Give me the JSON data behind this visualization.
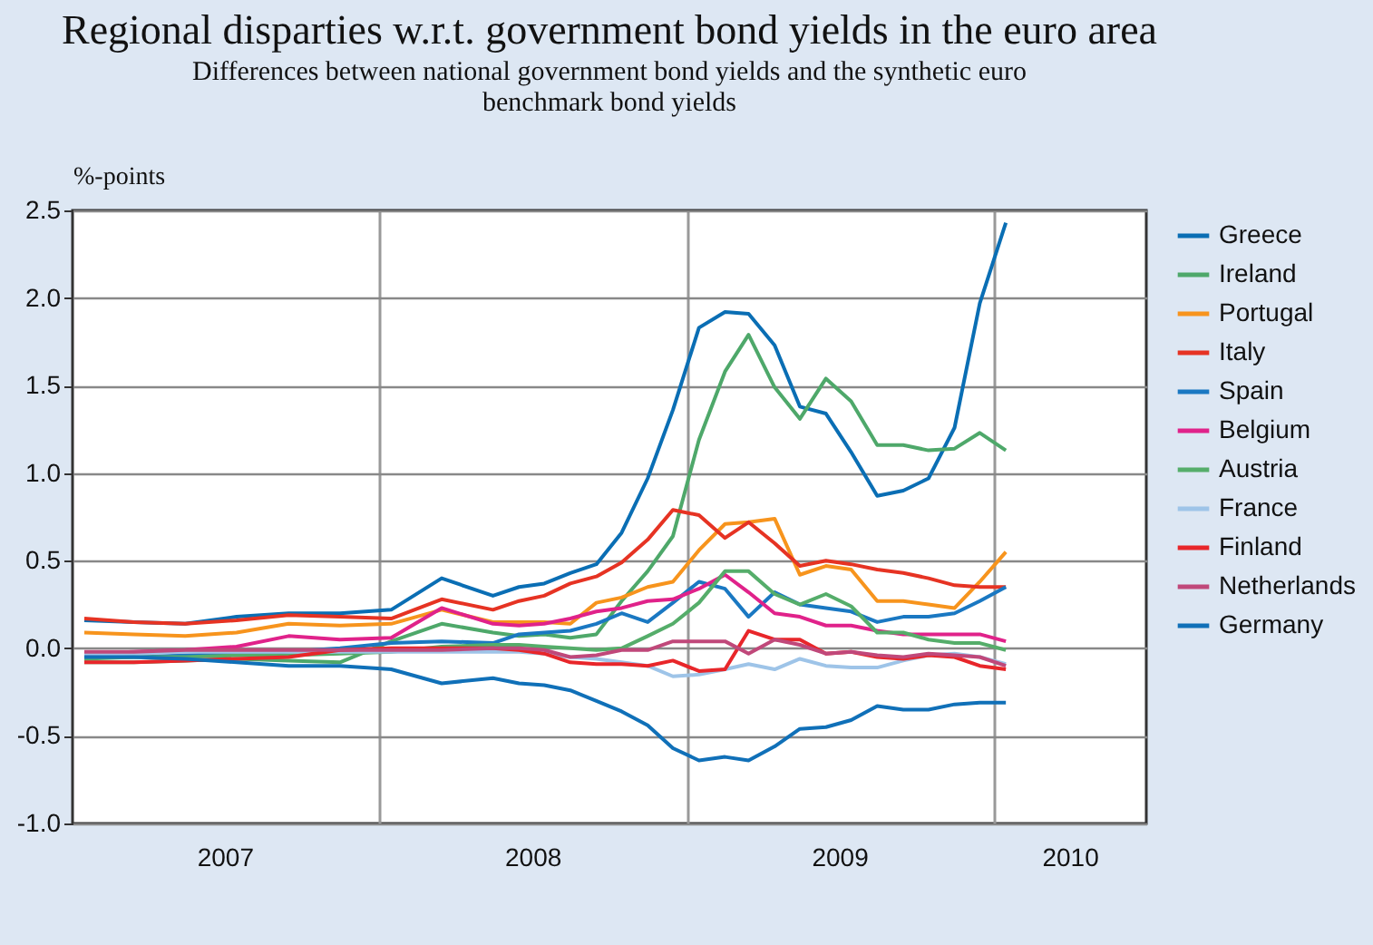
{
  "chart_data": {
    "type": "line",
    "title": "Regional disparties w.r.t. government bond yields in the euro area",
    "subtitle": "Differences between national government bond yields and the synthetic euro benchmark bond yields",
    "ylabel": "%-points",
    "x": [
      "2007-01-15",
      "2007-03-15",
      "2007-05-15",
      "2007-07-15",
      "2007-09-15",
      "2007-11-15",
      "2008-01-15",
      "2008-03-15",
      "2008-05-15",
      "2008-06-15",
      "2008-07-15",
      "2008-08-15",
      "2008-09-15",
      "2008-10-15",
      "2008-11-15",
      "2008-12-15",
      "2009-01-15",
      "2009-02-15",
      "2009-03-15",
      "2009-04-15",
      "2009-05-15",
      "2009-06-15",
      "2009-07-15",
      "2009-08-15",
      "2009-09-15",
      "2009-10-15",
      "2009-11-15",
      "2009-12-15",
      "2010-01-15"
    ],
    "series": [
      {
        "name": "Greece",
        "color": "#0a6eb4",
        "values": [
          0.16,
          0.15,
          0.14,
          0.18,
          0.2,
          0.2,
          0.22,
          0.4,
          0.3,
          0.35,
          0.37,
          0.43,
          0.48,
          0.66,
          0.97,
          1.36,
          1.83,
          1.92,
          1.91,
          1.73,
          1.38,
          1.34,
          1.12,
          0.87,
          0.9,
          0.97,
          1.26,
          1.97,
          2.43
        ]
      },
      {
        "name": "Ireland",
        "color": "#4ea86a",
        "values": [
          -0.08,
          -0.08,
          -0.07,
          -0.06,
          -0.07,
          -0.08,
          0.04,
          0.14,
          0.09,
          0.07,
          0.08,
          0.06,
          0.08,
          0.27,
          0.44,
          0.64,
          1.19,
          1.58,
          1.79,
          1.49,
          1.31,
          1.54,
          1.41,
          1.16,
          1.16,
          1.13,
          1.14,
          1.23,
          1.13
        ]
      },
      {
        "name": "Portugal",
        "color": "#f7941d",
        "values": [
          0.09,
          0.08,
          0.07,
          0.09,
          0.14,
          0.13,
          0.14,
          0.22,
          0.15,
          0.15,
          0.15,
          0.14,
          0.26,
          0.29,
          0.35,
          0.38,
          0.56,
          0.71,
          0.72,
          0.74,
          0.42,
          0.47,
          0.45,
          0.27,
          0.27,
          0.25,
          0.23,
          0.38,
          0.55
        ]
      },
      {
        "name": "Italy",
        "color": "#e63323",
        "values": [
          0.17,
          0.15,
          0.14,
          0.16,
          0.19,
          0.18,
          0.17,
          0.28,
          0.22,
          0.27,
          0.3,
          0.37,
          0.41,
          0.49,
          0.62,
          0.79,
          0.76,
          0.63,
          0.72,
          0.6,
          0.47,
          0.5,
          0.48,
          0.45,
          0.43,
          0.4,
          0.36,
          0.35,
          0.35
        ]
      },
      {
        "name": "Spain",
        "color": "#1a78c2",
        "values": [
          -0.05,
          -0.05,
          -0.04,
          -0.03,
          -0.02,
          0.0,
          0.03,
          0.04,
          0.03,
          0.08,
          0.09,
          0.1,
          0.14,
          0.2,
          0.15,
          0.26,
          0.38,
          0.34,
          0.18,
          0.32,
          0.25,
          0.23,
          0.21,
          0.15,
          0.18,
          0.18,
          0.2,
          0.27,
          0.35
        ]
      },
      {
        "name": "Belgium",
        "color": "#e0228a",
        "values": [
          -0.03,
          -0.02,
          -0.01,
          0.01,
          0.07,
          0.05,
          0.06,
          0.23,
          0.14,
          0.13,
          0.14,
          0.17,
          0.21,
          0.23,
          0.27,
          0.28,
          0.34,
          0.42,
          0.32,
          0.2,
          0.18,
          0.13,
          0.13,
          0.1,
          0.08,
          0.08,
          0.08,
          0.08,
          0.04
        ]
      },
      {
        "name": "Austria",
        "color": "#55ad6a",
        "values": [
          -0.06,
          -0.05,
          -0.05,
          -0.04,
          -0.04,
          -0.03,
          -0.02,
          0.01,
          0.02,
          0.02,
          0.01,
          0.0,
          -0.01,
          0.0,
          0.07,
          0.14,
          0.26,
          0.44,
          0.44,
          0.31,
          0.25,
          0.31,
          0.24,
          0.09,
          0.09,
          0.05,
          0.03,
          0.03,
          -0.01
        ]
      },
      {
        "name": "France",
        "color": "#9ec4e8",
        "values": [
          -0.03,
          -0.03,
          -0.02,
          -0.02,
          -0.02,
          -0.02,
          -0.02,
          -0.02,
          -0.02,
          -0.02,
          -0.03,
          -0.05,
          -0.06,
          -0.08,
          -0.1,
          -0.16,
          -0.15,
          -0.12,
          -0.09,
          -0.12,
          -0.06,
          -0.1,
          -0.11,
          -0.11,
          -0.07,
          -0.04,
          -0.03,
          -0.05,
          -0.09
        ]
      },
      {
        "name": "Finland",
        "color": "#e8262a",
        "values": [
          -0.08,
          -0.08,
          -0.07,
          -0.06,
          -0.05,
          -0.01,
          0.0,
          0.0,
          0.0,
          -0.01,
          -0.03,
          -0.08,
          -0.09,
          -0.09,
          -0.1,
          -0.07,
          -0.13,
          -0.12,
          0.1,
          0.05,
          0.05,
          -0.03,
          -0.02,
          -0.05,
          -0.06,
          -0.04,
          -0.05,
          -0.1,
          -0.12
        ]
      },
      {
        "name": "Netherlands",
        "color": "#c0487a",
        "values": [
          -0.02,
          -0.02,
          -0.01,
          -0.01,
          -0.01,
          -0.01,
          -0.01,
          -0.01,
          0.0,
          0.0,
          -0.01,
          -0.05,
          -0.04,
          -0.01,
          -0.01,
          0.04,
          0.04,
          0.04,
          -0.03,
          0.05,
          0.02,
          -0.03,
          -0.02,
          -0.04,
          -0.05,
          -0.03,
          -0.04,
          -0.05,
          -0.1
        ]
      },
      {
        "name": "Germany",
        "color": "#1070b8",
        "values": [
          -0.05,
          -0.05,
          -0.06,
          -0.08,
          -0.1,
          -0.1,
          -0.12,
          -0.2,
          -0.17,
          -0.2,
          -0.21,
          -0.24,
          -0.3,
          -0.36,
          -0.44,
          -0.57,
          -0.64,
          -0.62,
          -0.64,
          -0.56,
          -0.46,
          -0.45,
          -0.41,
          -0.33,
          -0.35,
          -0.35,
          -0.32,
          -0.31,
          -0.31
        ]
      }
    ],
    "xlim": [
      "2007-01",
      "2010-07"
    ],
    "xticks": [
      {
        "value": "2007-07",
        "label": "2007"
      },
      {
        "value": "2008-01",
        "label": null
      },
      {
        "value": "2008-07",
        "label": "2008"
      },
      {
        "value": "2009-01",
        "label": null
      },
      {
        "value": "2009-07",
        "label": "2009"
      },
      {
        "value": "2010-01",
        "label": null
      },
      {
        "value": "2010-04",
        "label": "2010"
      }
    ],
    "ylim": [
      -1,
      2.5
    ],
    "yticks": [
      {
        "value": -1,
        "label": "-1.0"
      },
      {
        "value": -0.5,
        "label": "-0.5"
      },
      {
        "value": 0,
        "label": "0.0"
      },
      {
        "value": 0.5,
        "label": "0.5"
      },
      {
        "value": 1,
        "label": "1.0"
      },
      {
        "value": 1.5,
        "label": "1.5"
      },
      {
        "value": 2,
        "label": "2.0"
      },
      {
        "value": 2.5,
        "label": "2.5"
      }
    ],
    "grid": true,
    "legend": "right",
    "line_style": "solid"
  }
}
